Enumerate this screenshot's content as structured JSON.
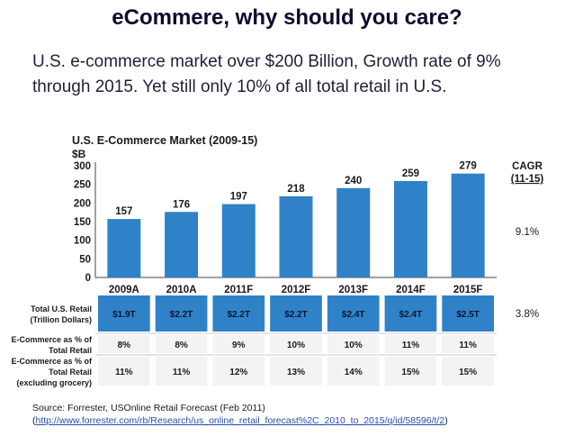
{
  "header": {
    "title": "eCommere, why should you care?",
    "subtitle": "U.S. e-commerce market over $200 Billion, Growth rate of 9% through 2015. Yet still only 10% of all total retail in U.S."
  },
  "chart_data": {
    "type": "bar",
    "title": "U.S. E-Commerce Market (2009-15)",
    "ylabel": "$B",
    "xlabel": "",
    "categories": [
      "2009A",
      "2010A",
      "2011F",
      "2012F",
      "2013F",
      "2014F",
      "2015F"
    ],
    "values": [
      157,
      176,
      197,
      218,
      240,
      259,
      279
    ],
    "ylim": [
      0,
      300
    ],
    "yticks": [
      0,
      50,
      100,
      150,
      200,
      250,
      300
    ],
    "grid": false,
    "bar_color": "#2f82c8",
    "cagr_label": "CAGR",
    "cagr_period": "(11-15)",
    "cagr_market": "9.1%",
    "table": {
      "rows": [
        {
          "label": [
            "Total U.S. Retail",
            "(Trillion Dollars)"
          ],
          "values": [
            "$1.9T",
            "$2.2T",
            "$2.2T",
            "$2.2T",
            "$2.4T",
            "$2.4T",
            "$2.5T"
          ],
          "cagr": "3.8%"
        },
        {
          "label": [
            "E-Commerce as % of",
            "Total Retail"
          ],
          "values": [
            "8%",
            "8%",
            "9%",
            "10%",
            "10%",
            "11%",
            "11%"
          ],
          "cagr": ""
        },
        {
          "label": [
            "E-Commerce as % of",
            "Total Retail",
            "(excluding grocery)"
          ],
          "values": [
            "11%",
            "11%",
            "12%",
            "13%",
            "14%",
            "15%",
            "15%"
          ],
          "cagr": ""
        }
      ]
    }
  },
  "source": {
    "text": "Source: Forrester, USOnline Retail Forecast (Feb 2011)",
    "link_open": "(",
    "link": "http://www.forrester.com/rb/Research/us_online_retail_forecast%2C_2010_to_2015/q/id/58596/t/2",
    "link_close": ")"
  }
}
